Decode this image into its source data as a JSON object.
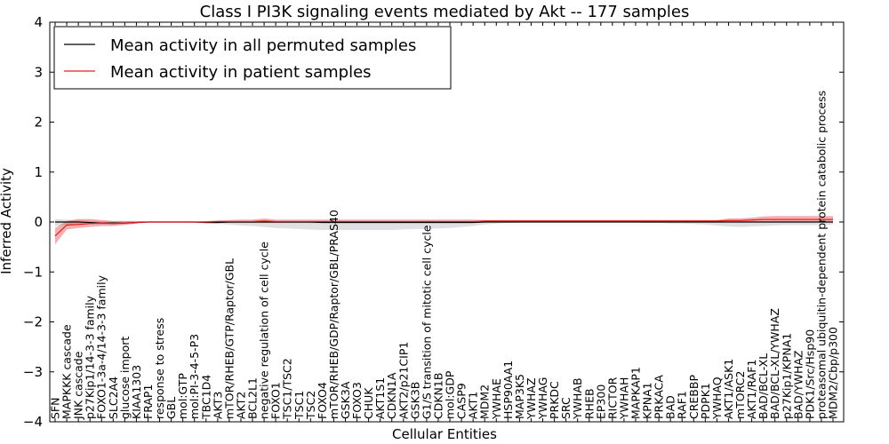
{
  "chart_data": {
    "type": "line",
    "title": "Class I PI3K signaling events mediated by Akt -- 177 samples",
    "xlabel": "Cellular Entities",
    "ylabel": "Inferred Activity",
    "ylim": [
      -4,
      4
    ],
    "yticks": [
      -4,
      -3,
      -2,
      -1,
      0,
      1,
      2,
      3,
      4
    ],
    "grid": false,
    "legend_position": "top-left",
    "categories": [
      "SFN",
      "MAPKKK cascade",
      "JNK cascade",
      "p27Kip1/14-3-3 family",
      "FOXO1-3a-4/14-3-3 family",
      "SLC2A4",
      "glucose import",
      "KIAA1303",
      "FRAP1",
      "response to stress",
      "GBL",
      "mol:GTP",
      "mol:PI-3-4-5-P3",
      "TBC1D4",
      "AKT3",
      "mTOR/RHEB/GTP/Raptor/GBL",
      "AKT2",
      "BCL2L1",
      "negative regulation of cell cycle",
      "FOXO1",
      "TSC1/TSC2",
      "TSC1",
      "TSC2",
      "FOXO4",
      "mTOR/RHEB/GDP/Raptor/GBL/PRAS40",
      "GSK3A",
      "FOXO3",
      "CHUK",
      "AKT1S1",
      "CDKN1A",
      "AKT2/p21CIP1",
      "GSK3B",
      "G1/S transition of mitotic cell cycle",
      "CDKN1B",
      "mol:GDP",
      "CASP9",
      "AKT1",
      "MDM2",
      "YWHAE",
      "HSP90AA1",
      "MAP3K5",
      "YWHAZ",
      "YWHAG",
      "PRKDC",
      "SRC",
      "YWHAB",
      "RHEB",
      "EP300",
      "RICTOR",
      "YWHAH",
      "MAPKAP1",
      "KPNA1",
      "PRKACA",
      "BAD",
      "RAF1",
      "CREBBP",
      "PDPK1",
      "YWHAQ",
      "AKT1/ASK1",
      "mTORC2",
      "AKT1/RAF1",
      "BAD/BCL-XL",
      "BAD/BCL-XL/YWHAZ",
      "p27Kip1/KPNA1",
      "BAD/YWHAZ",
      "PDK1/Src/Hsp90",
      "proteasomal ubiquitin-dependent protein catabolic process",
      "MDM2/Cbp/p300"
    ],
    "series": [
      {
        "name": "Mean activity in all permuted samples",
        "color": "#000000",
        "values": [
          0.0,
          0.0,
          0.0,
          -0.01,
          -0.02,
          -0.02,
          -0.02,
          -0.01,
          0.0,
          0.0,
          0.0,
          0.0,
          0.0,
          -0.01,
          -0.01,
          0.0,
          0.0,
          0.0,
          0.0,
          0.0,
          0.0,
          0.0,
          0.0,
          -0.01,
          -0.01,
          -0.01,
          -0.01,
          -0.01,
          -0.01,
          -0.01,
          -0.01,
          -0.01,
          -0.01,
          -0.01,
          -0.01,
          -0.01,
          -0.01,
          0.0,
          0.0,
          0.0,
          0.0,
          0.0,
          0.0,
          0.0,
          0.0,
          0.0,
          0.0,
          0.0,
          0.0,
          0.0,
          0.0,
          0.0,
          0.0,
          0.0,
          0.0,
          0.0,
          0.0,
          0.0,
          0.0,
          0.0,
          0.0,
          0.0,
          0.0,
          0.0,
          0.0,
          0.0,
          0.0,
          0.0
        ],
        "band_upper": [
          0.06,
          0.05,
          0.04,
          0.03,
          0.02,
          0.02,
          0.02,
          0.02,
          0.01,
          0.01,
          0.01,
          0.01,
          0.01,
          0.01,
          0.01,
          0.01,
          0.01,
          0.01,
          0.02,
          0.02,
          0.02,
          0.02,
          0.02,
          0.02,
          0.02,
          0.02,
          0.02,
          0.02,
          0.02,
          0.02,
          0.02,
          0.02,
          0.02,
          0.02,
          0.02,
          0.02,
          0.02,
          0.01,
          0.01,
          0.01,
          0.01,
          0.01,
          0.01,
          0.01,
          0.01,
          0.01,
          0.01,
          0.01,
          0.01,
          0.01,
          0.01,
          0.01,
          0.01,
          0.01,
          0.01,
          0.01,
          0.01,
          0.01,
          0.01,
          0.01,
          0.01,
          0.01,
          0.01,
          0.01,
          0.01,
          0.01,
          0.01,
          0.01
        ],
        "band_lower": [
          -0.08,
          -0.06,
          -0.05,
          -0.05,
          -0.06,
          -0.06,
          -0.05,
          -0.03,
          -0.01,
          -0.01,
          -0.01,
          -0.01,
          -0.02,
          -0.03,
          -0.04,
          -0.05,
          -0.07,
          -0.08,
          -0.1,
          -0.12,
          -0.13,
          -0.14,
          -0.15,
          -0.16,
          -0.16,
          -0.16,
          -0.16,
          -0.16,
          -0.16,
          -0.16,
          -0.15,
          -0.14,
          -0.14,
          -0.13,
          -0.12,
          -0.1,
          -0.08,
          -0.05,
          -0.03,
          -0.02,
          -0.01,
          -0.01,
          -0.01,
          -0.01,
          -0.01,
          -0.01,
          -0.01,
          -0.01,
          -0.01,
          -0.01,
          -0.01,
          -0.02,
          -0.02,
          -0.03,
          -0.03,
          -0.04,
          -0.05,
          -0.07,
          -0.09,
          -0.1,
          -0.09,
          -0.08,
          -0.07,
          -0.06,
          -0.06,
          -0.06,
          -0.06,
          -0.05
        ]
      },
      {
        "name": "Mean activity in patient samples",
        "color": "#e41a1c",
        "values": [
          -0.28,
          -0.06,
          -0.05,
          -0.03,
          -0.02,
          -0.03,
          -0.02,
          -0.01,
          0.0,
          0.0,
          0.0,
          0.0,
          0.0,
          0.0,
          0.01,
          0.01,
          0.01,
          0.01,
          0.02,
          0.01,
          0.01,
          0.01,
          0.01,
          0.01,
          0.01,
          0.01,
          0.01,
          0.01,
          0.01,
          0.01,
          0.01,
          0.01,
          0.01,
          0.01,
          0.01,
          0.01,
          0.01,
          0.02,
          0.02,
          0.02,
          0.02,
          0.02,
          0.02,
          0.02,
          0.02,
          0.02,
          0.02,
          0.02,
          0.02,
          0.02,
          0.02,
          0.02,
          0.02,
          0.02,
          0.02,
          0.02,
          0.02,
          0.02,
          0.03,
          0.03,
          0.04,
          0.05,
          0.05,
          0.05,
          0.05,
          0.05,
          0.05,
          0.05
        ],
        "band_upper": [
          -0.12,
          0.02,
          0.06,
          0.06,
          0.04,
          0.02,
          0.02,
          0.02,
          0.01,
          0.01,
          0.01,
          0.01,
          0.01,
          0.02,
          0.03,
          0.04,
          0.05,
          0.05,
          0.07,
          0.05,
          0.05,
          0.05,
          0.05,
          0.05,
          0.05,
          0.05,
          0.05,
          0.05,
          0.05,
          0.05,
          0.05,
          0.05,
          0.05,
          0.05,
          0.05,
          0.05,
          0.05,
          0.04,
          0.04,
          0.04,
          0.04,
          0.04,
          0.04,
          0.04,
          0.04,
          0.04,
          0.04,
          0.04,
          0.04,
          0.04,
          0.04,
          0.04,
          0.04,
          0.04,
          0.04,
          0.04,
          0.04,
          0.04,
          0.07,
          0.07,
          0.09,
          0.11,
          0.12,
          0.12,
          0.12,
          0.12,
          0.12,
          0.12
        ],
        "band_lower": [
          -0.45,
          -0.15,
          -0.12,
          -0.1,
          -0.08,
          -0.08,
          -0.06,
          -0.03,
          -0.01,
          -0.01,
          -0.01,
          -0.01,
          -0.01,
          -0.01,
          -0.02,
          -0.02,
          -0.02,
          -0.02,
          -0.02,
          -0.02,
          -0.02,
          -0.02,
          -0.02,
          -0.02,
          -0.02,
          -0.02,
          -0.02,
          -0.02,
          -0.02,
          -0.02,
          -0.02,
          -0.02,
          -0.02,
          -0.02,
          -0.02,
          -0.02,
          -0.02,
          0.0,
          0.0,
          0.0,
          0.0,
          0.0,
          0.0,
          0.0,
          0.0,
          0.0,
          0.0,
          0.0,
          0.0,
          0.0,
          0.0,
          0.0,
          0.0,
          0.0,
          0.0,
          0.0,
          0.0,
          0.0,
          -0.01,
          -0.01,
          -0.01,
          0.0,
          0.0,
          0.0,
          0.0,
          0.0,
          0.0,
          0.0
        ]
      }
    ]
  }
}
